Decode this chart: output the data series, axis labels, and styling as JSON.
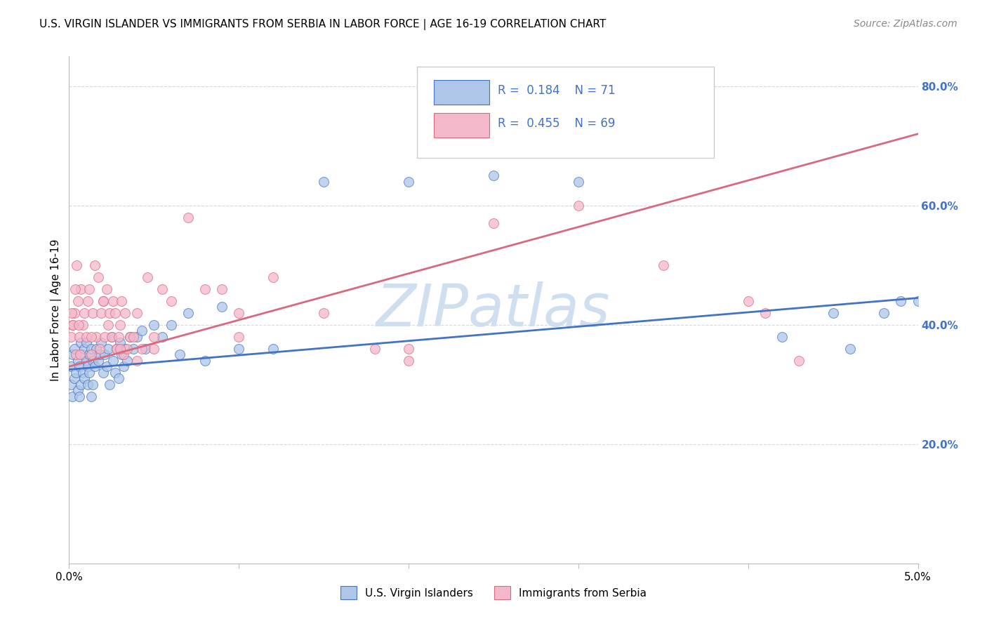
{
  "title": "U.S. VIRGIN ISLANDER VS IMMIGRANTS FROM SERBIA IN LABOR FORCE | AGE 16-19 CORRELATION CHART",
  "source": "Source: ZipAtlas.com",
  "ylabel_text": "In Labor Force | Age 16-19",
  "xlim": [
    0.0,
    0.05
  ],
  "ylim": [
    0.0,
    0.85
  ],
  "xtick_values": [
    0.0,
    0.01,
    0.02,
    0.03,
    0.04,
    0.05
  ],
  "xtick_labels": [
    "0.0%",
    "",
    "",
    "",
    "",
    "5.0%"
  ],
  "ytick_values": [
    0.2,
    0.4,
    0.6,
    0.8
  ],
  "ytick_labels": [
    "20.0%",
    "40.0%",
    "60.0%",
    "80.0%"
  ],
  "blue_color": "#aec6e8",
  "pink_color": "#f4b8cb",
  "blue_line_color": "#4472c4",
  "pink_line_color": "#d9697e",
  "blue_R": 0.184,
  "blue_N": 71,
  "pink_R": 0.455,
  "pink_N": 69,
  "legend_label_blue": "U.S. Virgin Islanders",
  "legend_label_pink": "Immigrants from Serbia",
  "watermark": "ZIPatlas",
  "blue_trend_x": [
    0.0,
    0.05
  ],
  "blue_trend_y": [
    0.325,
    0.445
  ],
  "pink_trend_x": [
    0.0,
    0.05
  ],
  "pink_trend_y": [
    0.33,
    0.72
  ],
  "right_ytick_color": "#4472c4",
  "title_fontsize": 11,
  "source_fontsize": 10,
  "axis_fontsize": 10,
  "tick_fontsize": 10,
  "legend_fontsize": 11,
  "watermark_color": "#d0dff0",
  "watermark_fontsize": 60,
  "grid_color": "#d8d8d8",
  "background_color": "#ffffff",
  "blue_scatter_x": [
    0.0001,
    0.0001,
    0.0002,
    0.0002,
    0.0003,
    0.0003,
    0.0004,
    0.0005,
    0.0005,
    0.0006,
    0.0006,
    0.0007,
    0.0007,
    0.0008,
    0.0008,
    0.0009,
    0.0009,
    0.001,
    0.001,
    0.0011,
    0.0011,
    0.0012,
    0.0012,
    0.0013,
    0.0013,
    0.0014,
    0.0014,
    0.0015,
    0.0016,
    0.0017,
    0.0018,
    0.0019,
    0.002,
    0.0021,
    0.0022,
    0.0023,
    0.0024,
    0.0025,
    0.0026,
    0.0027,
    0.0028,
    0.0029,
    0.003,
    0.0031,
    0.0032,
    0.0033,
    0.0034,
    0.0036,
    0.0038,
    0.004,
    0.0043,
    0.0045,
    0.005,
    0.0055,
    0.006,
    0.0065,
    0.007,
    0.008,
    0.009,
    0.01,
    0.012,
    0.015,
    0.02,
    0.025,
    0.03,
    0.045,
    0.048,
    0.049,
    0.05,
    0.042,
    0.046
  ],
  "blue_scatter_y": [
    0.33,
    0.3,
    0.35,
    0.28,
    0.36,
    0.31,
    0.32,
    0.29,
    0.34,
    0.33,
    0.28,
    0.37,
    0.3,
    0.35,
    0.32,
    0.36,
    0.31,
    0.34,
    0.37,
    0.33,
    0.3,
    0.35,
    0.32,
    0.36,
    0.28,
    0.34,
    0.3,
    0.33,
    0.36,
    0.34,
    0.35,
    0.37,
    0.32,
    0.35,
    0.33,
    0.36,
    0.3,
    0.38,
    0.34,
    0.32,
    0.36,
    0.31,
    0.37,
    0.35,
    0.33,
    0.36,
    0.34,
    0.38,
    0.36,
    0.38,
    0.39,
    0.36,
    0.4,
    0.38,
    0.4,
    0.35,
    0.42,
    0.34,
    0.43,
    0.36,
    0.36,
    0.64,
    0.64,
    0.65,
    0.64,
    0.42,
    0.42,
    0.44,
    0.44,
    0.38,
    0.36
  ],
  "pink_scatter_x": [
    0.0001,
    0.0002,
    0.0003,
    0.0004,
    0.0005,
    0.0006,
    0.0007,
    0.0008,
    0.0009,
    0.001,
    0.0011,
    0.0012,
    0.0013,
    0.0014,
    0.0015,
    0.0016,
    0.0017,
    0.0018,
    0.0019,
    0.002,
    0.0021,
    0.0022,
    0.0023,
    0.0024,
    0.0025,
    0.0026,
    0.0027,
    0.0028,
    0.0029,
    0.003,
    0.0031,
    0.0032,
    0.0033,
    0.0034,
    0.0036,
    0.0038,
    0.004,
    0.0043,
    0.0046,
    0.005,
    0.0055,
    0.006,
    0.007,
    0.008,
    0.009,
    0.01,
    0.012,
    0.015,
    0.018,
    0.02,
    0.025,
    0.03,
    0.035,
    0.04,
    0.00015,
    0.00025,
    0.00035,
    0.00045,
    0.00055,
    0.00065,
    0.0013,
    0.002,
    0.003,
    0.004,
    0.005,
    0.01,
    0.02,
    0.041,
    0.043
  ],
  "pink_scatter_y": [
    0.38,
    0.4,
    0.42,
    0.35,
    0.44,
    0.38,
    0.46,
    0.4,
    0.42,
    0.38,
    0.44,
    0.46,
    0.35,
    0.42,
    0.5,
    0.38,
    0.48,
    0.36,
    0.42,
    0.44,
    0.38,
    0.46,
    0.4,
    0.42,
    0.38,
    0.44,
    0.42,
    0.36,
    0.38,
    0.4,
    0.44,
    0.35,
    0.42,
    0.36,
    0.38,
    0.38,
    0.34,
    0.36,
    0.48,
    0.38,
    0.46,
    0.44,
    0.58,
    0.46,
    0.46,
    0.38,
    0.48,
    0.42,
    0.36,
    0.34,
    0.57,
    0.6,
    0.5,
    0.44,
    0.42,
    0.4,
    0.46,
    0.5,
    0.4,
    0.35,
    0.38,
    0.44,
    0.36,
    0.42,
    0.36,
    0.42,
    0.36,
    0.42,
    0.34
  ]
}
